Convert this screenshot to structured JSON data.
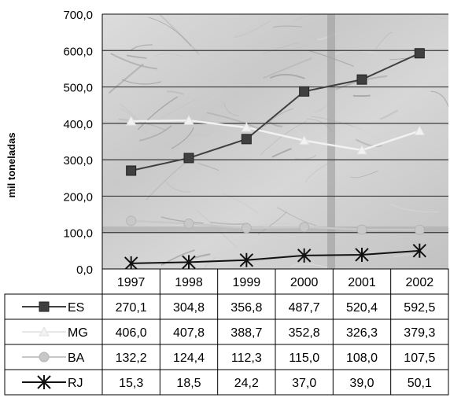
{
  "chart_data": {
    "type": "line",
    "title": "",
    "xlabel": "",
    "ylabel": "mil toneladas",
    "ylim": [
      0,
      700
    ],
    "yticks": [
      "0,0",
      "100,0",
      "200,0",
      "300,0",
      "400,0",
      "500,0",
      "600,0",
      "700,0"
    ],
    "grid": true,
    "legend": "data-table-below",
    "categories": [
      "1997",
      "1998",
      "1999",
      "2000",
      "2001",
      "2002"
    ],
    "series": [
      {
        "name": "ES",
        "values": [
          270.1,
          304.8,
          356.8,
          487.7,
          520.4,
          592.5
        ],
        "labels": [
          "270,1",
          "304,8",
          "356,8",
          "487,7",
          "520,4",
          "592,5"
        ],
        "marker": "square",
        "color": "#404040"
      },
      {
        "name": "MG",
        "values": [
          406.0,
          407.8,
          388.7,
          352.8,
          326.3,
          379.3
        ],
        "labels": [
          "406,0",
          "407,8",
          "388,7",
          "352,8",
          "326,3",
          "379,3"
        ],
        "marker": "triangle",
        "color": "#f2f2f2"
      },
      {
        "name": "BA",
        "values": [
          132.2,
          124.4,
          112.3,
          115.0,
          108.0,
          107.5
        ],
        "labels": [
          "132,2",
          "124,4",
          "112,3",
          "115,0",
          "108,0",
          "107,5"
        ],
        "marker": "circle",
        "color": "#c8c8c8"
      },
      {
        "name": "RJ",
        "values": [
          15.3,
          18.5,
          24.2,
          37.0,
          39.0,
          50.1
        ],
        "labels": [
          "15,3",
          "18,5",
          "24,2",
          "37,0",
          "39,0",
          "50,1"
        ],
        "marker": "star",
        "color": "#111111"
      }
    ]
  }
}
